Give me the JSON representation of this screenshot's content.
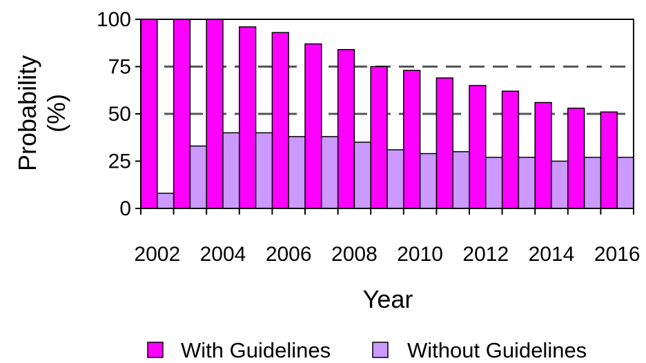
{
  "chart_data": {
    "type": "bar",
    "x": [
      2002,
      2003,
      2004,
      2005,
      2006,
      2007,
      2008,
      2009,
      2010,
      2011,
      2012,
      2013,
      2014,
      2015,
      2016
    ],
    "x_tick_labels": [
      "2002",
      "2004",
      "2006",
      "2008",
      "2010",
      "2012",
      "2014",
      "2016"
    ],
    "series": [
      {
        "name": "With Guidelines",
        "color": "#ff00ff",
        "values": [
          100,
          100,
          100,
          96,
          93,
          87,
          84,
          75,
          73,
          69,
          65,
          62,
          56,
          53,
          51
        ]
      },
      {
        "name": "Without Guidelines",
        "color": "#cc99ff",
        "values": [
          8,
          33,
          40,
          40,
          38,
          38,
          35,
          31,
          29,
          30,
          27,
          27,
          25,
          27,
          27
        ]
      }
    ],
    "title": "",
    "xlabel": "Year",
    "ylabel": "Probability",
    "ylabel_line2": "(%)",
    "ylim": [
      0,
      100
    ],
    "y_ticks": [
      0,
      25,
      50,
      75,
      100
    ],
    "y_tick_labels": [
      "0",
      "25",
      "50",
      "75",
      "100"
    ],
    "gridlines": [
      50,
      75
    ],
    "grid": true,
    "grid_style": "dashed",
    "legend_position": "bottom"
  }
}
